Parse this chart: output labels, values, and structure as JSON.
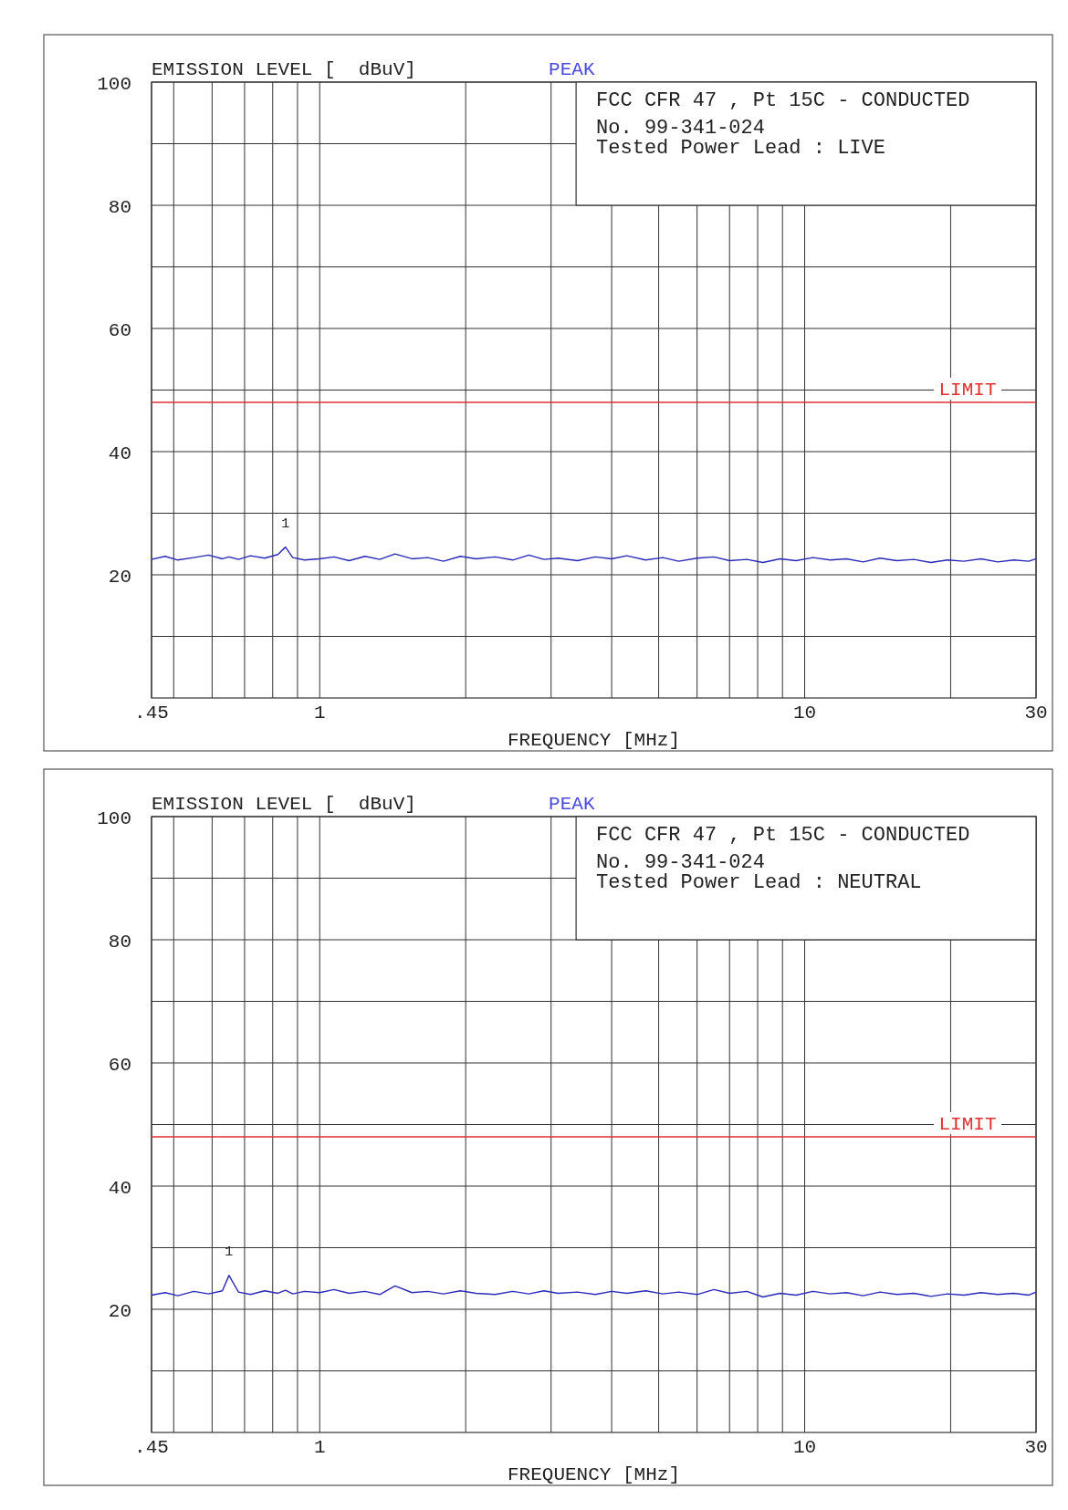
{
  "chart_data": [
    {
      "type": "line",
      "ylabel": "EMISSION LEVEL [  dBuV]",
      "xlabel": "FREQUENCY [MHz]",
      "log": "x",
      "grid": true,
      "annotations": [
        "PEAK",
        "FCC CFR 47 , Pt 15C - CONDUCTED",
        "No. 99-341-024",
        "Tested Power Lead : LIVE",
        {
          "text": "1",
          "x": 0.85,
          "y": 24.5
        }
      ],
      "xlim": [
        0.45,
        30
      ],
      "ylim": [
        0,
        100
      ],
      "xticks": [
        {
          "value": 0.45,
          "label": ".45"
        },
        {
          "value": 0.5,
          "label": null
        },
        {
          "value": 0.6,
          "label": null
        },
        {
          "value": 0.7,
          "label": null
        },
        {
          "value": 0.8,
          "label": null
        },
        {
          "value": 0.9,
          "label": null
        },
        1,
        {
          "value": 2,
          "label": null
        },
        {
          "value": 3,
          "label": null
        },
        {
          "value": 4,
          "label": null
        },
        {
          "value": 5,
          "label": null
        },
        {
          "value": 6,
          "label": null
        },
        {
          "value": 7,
          "label": null
        },
        {
          "value": 8,
          "label": null
        },
        {
          "value": 9,
          "label": null
        },
        10,
        {
          "value": 20,
          "label": null
        },
        30
      ],
      "yticks": [
        {
          "value": 10,
          "label": null
        },
        20,
        {
          "value": 30,
          "label": null
        },
        40,
        {
          "value": 50,
          "label": null
        },
        60,
        {
          "value": 70,
          "label": null
        },
        80,
        {
          "value": 90,
          "label": null
        },
        100
      ],
      "ref_lines": [
        {
          "axis": "y",
          "value": 48,
          "label": "LIMIT",
          "color": "#e03030"
        }
      ],
      "x": [
        0.45,
        0.48,
        0.51,
        0.55,
        0.59,
        0.63,
        0.65,
        0.68,
        0.72,
        0.77,
        0.82,
        0.85,
        0.88,
        0.93,
        1.0,
        1.07,
        1.15,
        1.24,
        1.33,
        1.43,
        1.55,
        1.67,
        1.8,
        1.95,
        2.1,
        2.3,
        2.5,
        2.7,
        2.9,
        3.1,
        3.4,
        3.7,
        4.0,
        4.3,
        4.7,
        5.1,
        5.5,
        6.0,
        6.5,
        7.0,
        7.6,
        8.2,
        8.9,
        9.6,
        10.4,
        11.3,
        12.2,
        13.2,
        14.3,
        15.5,
        16.8,
        18.2,
        19.7,
        21.3,
        23.1,
        25,
        27,
        29,
        30
      ],
      "series": [
        {
          "color": "#2a2ab8",
          "values": [
            22.5,
            23.0,
            22.4,
            22.8,
            23.2,
            22.6,
            22.9,
            22.5,
            23.1,
            22.7,
            23.3,
            24.5,
            22.8,
            22.4,
            22.6,
            22.9,
            22.3,
            23.0,
            22.5,
            23.4,
            22.6,
            22.8,
            22.2,
            23.0,
            22.6,
            22.9,
            22.4,
            23.2,
            22.5,
            22.7,
            22.3,
            22.9,
            22.6,
            23.1,
            22.4,
            22.8,
            22.2,
            22.7,
            22.9,
            22.3,
            22.5,
            22.0,
            22.6,
            22.3,
            22.8,
            22.4,
            22.6,
            22.1,
            22.7,
            22.3,
            22.5,
            22.0,
            22.4,
            22.2,
            22.6,
            22.1,
            22.4,
            22.2,
            22.6
          ]
        }
      ]
    },
    {
      "type": "line",
      "ylabel": "EMISSION LEVEL [  dBuV]",
      "xlabel": "FREQUENCY [MHz]",
      "log": "x",
      "grid": true,
      "annotations": [
        "PEAK",
        "FCC CFR 47 , Pt 15C - CONDUCTED",
        "No. 99-341-024",
        "Tested Power Lead : NEUTRAL",
        {
          "text": "1",
          "x": 0.65,
          "y": 25.5
        }
      ],
      "xlim": [
        0.45,
        30
      ],
      "ylim": [
        0,
        100
      ],
      "xticks": [
        {
          "value": 0.45,
          "label": ".45"
        },
        {
          "value": 0.5,
          "label": null
        },
        {
          "value": 0.6,
          "label": null
        },
        {
          "value": 0.7,
          "label": null
        },
        {
          "value": 0.8,
          "label": null
        },
        {
          "value": 0.9,
          "label": null
        },
        1,
        {
          "value": 2,
          "label": null
        },
        {
          "value": 3,
          "label": null
        },
        {
          "value": 4,
          "label": null
        },
        {
          "value": 5,
          "label": null
        },
        {
          "value": 6,
          "label": null
        },
        {
          "value": 7,
          "label": null
        },
        {
          "value": 8,
          "label": null
        },
        {
          "value": 9,
          "label": null
        },
        10,
        {
          "value": 20,
          "label": null
        },
        30
      ],
      "yticks": [
        {
          "value": 10,
          "label": null
        },
        20,
        {
          "value": 30,
          "label": null
        },
        40,
        {
          "value": 50,
          "label": null
        },
        60,
        {
          "value": 70,
          "label": null
        },
        80,
        {
          "value": 90,
          "label": null
        },
        100
      ],
      "ref_lines": [
        {
          "axis": "y",
          "value": 48,
          "label": "LIMIT",
          "color": "#e03030"
        }
      ],
      "x": [
        0.45,
        0.48,
        0.51,
        0.55,
        0.59,
        0.63,
        0.65,
        0.68,
        0.72,
        0.77,
        0.82,
        0.85,
        0.88,
        0.93,
        1.0,
        1.07,
        1.15,
        1.24,
        1.33,
        1.43,
        1.55,
        1.67,
        1.8,
        1.95,
        2.1,
        2.3,
        2.5,
        2.7,
        2.9,
        3.1,
        3.4,
        3.7,
        4.0,
        4.3,
        4.7,
        5.1,
        5.5,
        6.0,
        6.5,
        7.0,
        7.6,
        8.2,
        8.9,
        9.6,
        10.4,
        11.3,
        12.2,
        13.2,
        14.3,
        15.5,
        16.8,
        18.2,
        19.7,
        21.3,
        23.1,
        25,
        27,
        29,
        30
      ],
      "series": [
        {
          "color": "#2a2ab8",
          "values": [
            22.3,
            22.7,
            22.2,
            22.9,
            22.5,
            23.0,
            25.5,
            22.8,
            22.4,
            23.0,
            22.6,
            23.1,
            22.5,
            22.9,
            22.7,
            23.2,
            22.6,
            22.9,
            22.4,
            23.8,
            22.7,
            22.9,
            22.5,
            23.0,
            22.6,
            22.4,
            22.9,
            22.5,
            23.0,
            22.6,
            22.8,
            22.4,
            22.9,
            22.6,
            23.0,
            22.5,
            22.8,
            22.4,
            23.2,
            22.6,
            22.9,
            22.0,
            22.6,
            22.3,
            22.9,
            22.5,
            22.7,
            22.2,
            22.8,
            22.4,
            22.6,
            22.1,
            22.5,
            22.3,
            22.7,
            22.4,
            22.6,
            22.3,
            22.8
          ]
        }
      ]
    }
  ]
}
